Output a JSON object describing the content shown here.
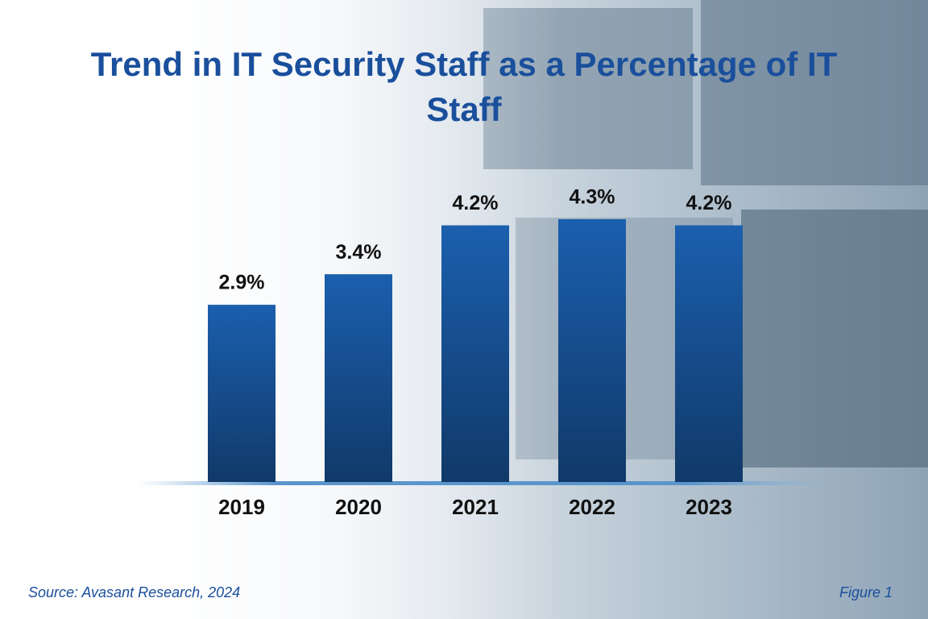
{
  "chart_data": {
    "type": "bar",
    "title": "Trend in IT Security Staff as a Percentage of IT Staff",
    "categories": [
      "2019",
      "2020",
      "2021",
      "2022",
      "2023"
    ],
    "values": [
      2.9,
      3.4,
      4.2,
      4.3,
      4.2
    ],
    "value_labels": [
      "2.9%",
      "3.4%",
      "4.2%",
      "4.3%",
      "4.2%"
    ],
    "color": "#1b5fae",
    "source": "Source: Avasant Research, 2024",
    "figure_label": "Figure 1"
  }
}
